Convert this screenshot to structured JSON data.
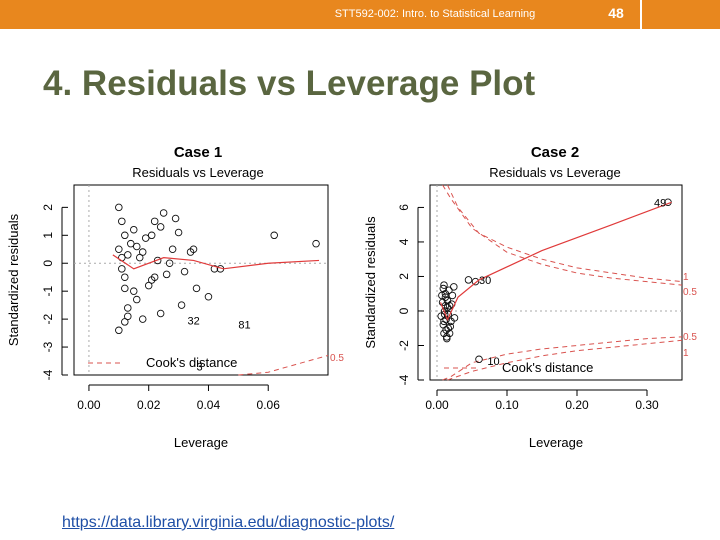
{
  "header": {
    "course": "STT592-002: Intro. to Statistical Learning",
    "page_number": "48",
    "accent_color": "#e8871e"
  },
  "title": "4. Residuals vs Leverage Plot",
  "link": "https://data.library.virginia.edu/diagnostic-plots/",
  "chart_data": [
    {
      "type": "scatter",
      "title": "Case 1",
      "subtitle": "Residuals vs Leverage",
      "xlabel": "Leverage",
      "ylabel": "Standardized residuals",
      "xlim": [
        -0.005,
        0.08
      ],
      "ylim": [
        -4,
        2.8
      ],
      "xticks": [
        0,
        0.02,
        0.04,
        0.06
      ],
      "xtick_labels": [
        "0.00",
        "0.02",
        "0.04",
        "0.06"
      ],
      "yticks": [
        -4,
        -3,
        -2,
        -1,
        0,
        1,
        2
      ],
      "ytick_labels": [
        "-4",
        "-3",
        "-2",
        "-1",
        "0",
        "1",
        "2"
      ],
      "legend": "Cook's distance",
      "cook_labels": [
        "0.5"
      ],
      "points": [
        [
          0.01,
          2.0
        ],
        [
          0.011,
          1.5
        ],
        [
          0.012,
          1.0
        ],
        [
          0.01,
          0.5
        ],
        [
          0.013,
          0.3
        ],
        [
          0.011,
          -0.2
        ],
        [
          0.012,
          -0.5
        ],
        [
          0.014,
          0.7
        ],
        [
          0.015,
          -1.0
        ],
        [
          0.016,
          -1.3
        ],
        [
          0.013,
          -1.6
        ],
        [
          0.012,
          -2.1
        ],
        [
          0.01,
          -2.4
        ],
        [
          0.017,
          0.2
        ],
        [
          0.019,
          0.9
        ],
        [
          0.021,
          -0.6
        ],
        [
          0.022,
          1.5
        ],
        [
          0.024,
          1.3
        ],
        [
          0.026,
          -0.4
        ],
        [
          0.028,
          0.5
        ],
        [
          0.03,
          1.1
        ],
        [
          0.032,
          -0.3
        ],
        [
          0.034,
          0.4
        ],
        [
          0.036,
          -0.9
        ],
        [
          0.04,
          -1.2
        ],
        [
          0.042,
          -0.2
        ],
        [
          0.018,
          -2.0
        ],
        [
          0.02,
          -0.8
        ],
        [
          0.023,
          0.1
        ],
        [
          0.025,
          1.8
        ],
        [
          0.027,
          0.0
        ],
        [
          0.029,
          1.6
        ],
        [
          0.031,
          -1.5
        ],
        [
          0.015,
          1.2
        ],
        [
          0.011,
          0.2
        ],
        [
          0.012,
          -0.9
        ],
        [
          0.013,
          -1.9
        ],
        [
          0.016,
          0.6
        ],
        [
          0.018,
          0.4
        ],
        [
          0.021,
          1.0
        ],
        [
          0.024,
          -1.8
        ],
        [
          0.062,
          1.0
        ],
        [
          0.076,
          0.7
        ],
        [
          0.044,
          -0.2
        ],
        [
          0.035,
          0.5
        ],
        [
          0.022,
          -0.5
        ]
      ],
      "annotations": [
        {
          "text": "32",
          "x": 0.033,
          "y": -2.05
        },
        {
          "text": "81",
          "x": 0.05,
          "y": -2.2
        },
        {
          "text": "3",
          "x": 0.036,
          "y": -3.7
        }
      ],
      "fit": [
        [
          0.008,
          0.3
        ],
        [
          0.015,
          -0.2
        ],
        [
          0.025,
          0.2
        ],
        [
          0.035,
          0.1
        ],
        [
          0.045,
          -0.2
        ],
        [
          0.06,
          0.0
        ],
        [
          0.077,
          0.1
        ]
      ],
      "cook_curves": [
        [
          [
            0.05,
            -4.0
          ],
          [
            0.06,
            -3.9
          ],
          [
            0.07,
            -3.6
          ],
          [
            0.08,
            -3.3
          ]
        ]
      ]
    },
    {
      "type": "scatter",
      "title": "Case 2",
      "subtitle": "Residuals vs Leverage",
      "xlabel": "Leverage",
      "ylabel": "Standardized residuals",
      "xlim": [
        -0.01,
        0.35
      ],
      "ylim": [
        -4,
        7.3
      ],
      "xticks": [
        0,
        0.1,
        0.2,
        0.3
      ],
      "xtick_labels": [
        "0.00",
        "0.10",
        "0.20",
        "0.30"
      ],
      "yticks": [
        -4,
        -2,
        0,
        2,
        4,
        6
      ],
      "ytick_labels": [
        "-4",
        "-2",
        "0",
        "2",
        "4",
        "6"
      ],
      "legend": "Cook's distance",
      "cook_labels": [
        "1",
        "0.5",
        "0.5",
        "1"
      ],
      "points": [
        [
          0.01,
          1.5
        ],
        [
          0.012,
          1.0
        ],
        [
          0.008,
          0.5
        ],
        [
          0.015,
          0.2
        ],
        [
          0.011,
          -0.2
        ],
        [
          0.013,
          -0.5
        ],
        [
          0.009,
          -0.8
        ],
        [
          0.016,
          -1.0
        ],
        [
          0.01,
          -1.3
        ],
        [
          0.014,
          -1.5
        ],
        [
          0.012,
          0.8
        ],
        [
          0.018,
          0.3
        ],
        [
          0.006,
          -0.3
        ],
        [
          0.02,
          -0.6
        ],
        [
          0.017,
          1.2
        ],
        [
          0.013,
          -1.1
        ],
        [
          0.011,
          0.0
        ],
        [
          0.015,
          0.6
        ],
        [
          0.019,
          -0.9
        ],
        [
          0.007,
          0.9
        ],
        [
          0.024,
          1.4
        ],
        [
          0.016,
          -0.2
        ],
        [
          0.021,
          0.4
        ],
        [
          0.025,
          -0.4
        ],
        [
          0.009,
          1.3
        ],
        [
          0.014,
          -1.6
        ],
        [
          0.012,
          0.3
        ],
        [
          0.01,
          -0.6
        ],
        [
          0.018,
          -1.3
        ],
        [
          0.022,
          0.9
        ],
        [
          0.045,
          1.8
        ],
        [
          0.055,
          1.7
        ],
        [
          0.33,
          6.3
        ],
        [
          0.06,
          -2.8
        ]
      ],
      "annotations": [
        {
          "text": "49",
          "x": 0.31,
          "y": 6.3
        },
        {
          "text": "30",
          "x": 0.06,
          "y": 1.8
        },
        {
          "text": "10",
          "x": 0.072,
          "y": -2.9
        }
      ],
      "fit": [
        [
          0.005,
          0.5
        ],
        [
          0.015,
          -0.5
        ],
        [
          0.03,
          0.8
        ],
        [
          0.06,
          1.8
        ],
        [
          0.15,
          3.5
        ],
        [
          0.25,
          5.0
        ],
        [
          0.335,
          6.3
        ]
      ],
      "cook_curves": [
        [
          [
            0.008,
            7.3
          ],
          [
            0.02,
            6.5
          ],
          [
            0.05,
            4.8
          ],
          [
            0.1,
            3.4
          ],
          [
            0.15,
            2.7
          ],
          [
            0.2,
            2.2
          ],
          [
            0.25,
            1.9
          ],
          [
            0.3,
            1.7
          ],
          [
            0.35,
            1.5
          ]
        ],
        [
          [
            0.015,
            7.3
          ],
          [
            0.03,
            6.0
          ],
          [
            0.06,
            4.5
          ],
          [
            0.1,
            3.7
          ],
          [
            0.15,
            3.0
          ],
          [
            0.2,
            2.5
          ],
          [
            0.25,
            2.2
          ],
          [
            0.3,
            1.9
          ],
          [
            0.35,
            1.7
          ]
        ],
        [
          [
            0.008,
            -4.0
          ],
          [
            0.02,
            -3.8
          ],
          [
            0.05,
            -3.0
          ],
          [
            0.1,
            -2.5
          ],
          [
            0.15,
            -2.2
          ],
          [
            0.2,
            -2.0
          ],
          [
            0.25,
            -1.8
          ],
          [
            0.3,
            -1.6
          ],
          [
            0.35,
            -1.5
          ]
        ],
        [
          [
            0.015,
            -4.0
          ],
          [
            0.05,
            -3.5
          ],
          [
            0.1,
            -3.0
          ],
          [
            0.15,
            -2.6
          ],
          [
            0.2,
            -2.3
          ],
          [
            0.25,
            -2.1
          ],
          [
            0.3,
            -1.9
          ],
          [
            0.35,
            -1.7
          ]
        ]
      ]
    }
  ]
}
